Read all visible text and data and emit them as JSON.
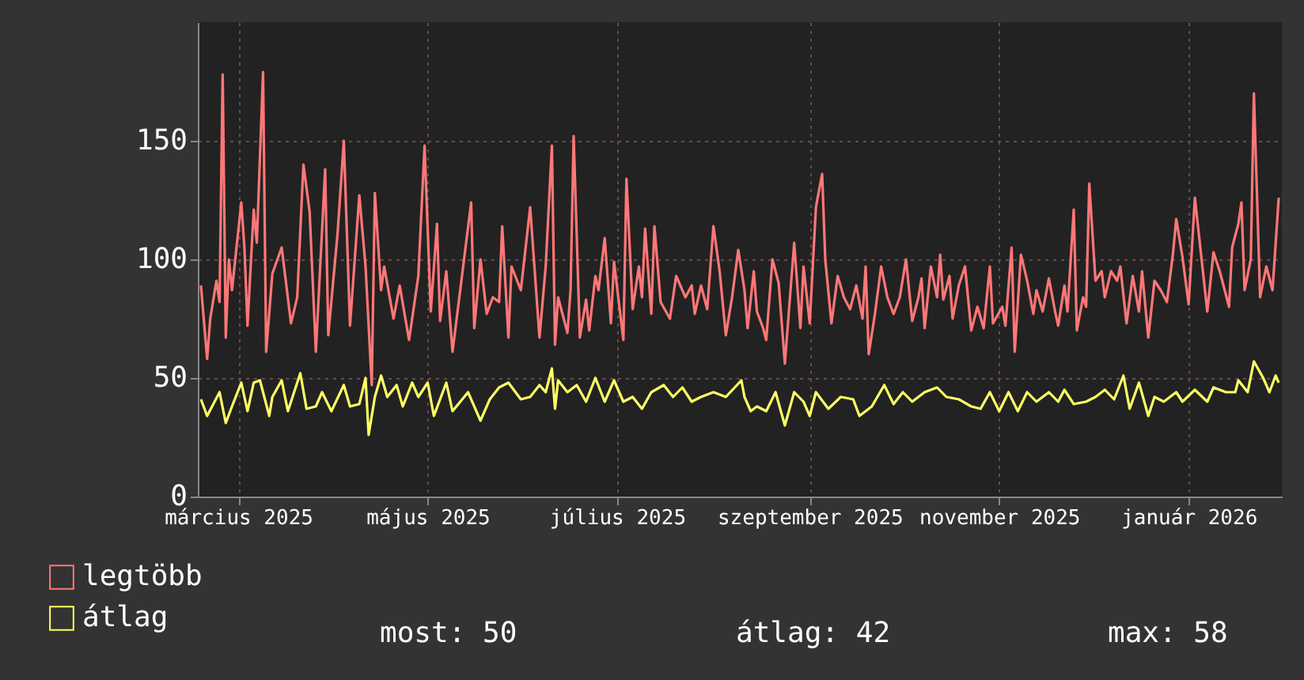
{
  "chart_data": {
    "type": "line",
    "xlim": [
      "2025-02-16",
      "2026-01-31"
    ],
    "xticks": [
      {
        "value": "2025-03-01",
        "label": "március 2025"
      },
      {
        "value": "2025-05-01",
        "label": "május 2025"
      },
      {
        "value": "2025-07-01",
        "label": "július 2025"
      },
      {
        "value": "2025-09-01",
        "label": "szeptember 2025"
      },
      {
        "value": "2025-11-01",
        "label": "november 2025"
      },
      {
        "value": "2026-01-01",
        "label": "január 2026"
      }
    ],
    "ylim": [
      0,
      200
    ],
    "yticks": [
      0,
      50,
      100,
      150
    ],
    "grid": true,
    "legend": "bottom",
    "series": [
      {
        "name": "legtöbb",
        "color": "#ff7777",
        "x": [
          "2025-02-17",
          "2025-02-19",
          "2025-02-20",
          "2025-02-22",
          "2025-02-23",
          "2025-02-24",
          "2025-02-25",
          "2025-02-26",
          "2025-02-27",
          "2025-03-02",
          "2025-03-03",
          "2025-03-04",
          "2025-03-06",
          "2025-03-07",
          "2025-03-09",
          "2025-03-10",
          "2025-03-12",
          "2025-03-15",
          "2025-03-18",
          "2025-03-20",
          "2025-03-22",
          "2025-03-24",
          "2025-03-26",
          "2025-03-29",
          "2025-03-30",
          "2025-04-02",
          "2025-04-04",
          "2025-04-06",
          "2025-04-09",
          "2025-04-11",
          "2025-04-13",
          "2025-04-14",
          "2025-04-16",
          "2025-04-17",
          "2025-04-20",
          "2025-04-22",
          "2025-04-25",
          "2025-04-28",
          "2025-04-30",
          "2025-05-02",
          "2025-05-04",
          "2025-05-05",
          "2025-05-07",
          "2025-05-09",
          "2025-05-11",
          "2025-05-15",
          "2025-05-16",
          "2025-05-18",
          "2025-05-20",
          "2025-05-22",
          "2025-05-24",
          "2025-05-25",
          "2025-05-27",
          "2025-05-28",
          "2025-05-31",
          "2025-06-03",
          "2025-06-06",
          "2025-06-08",
          "2025-06-10",
          "2025-06-11",
          "2025-06-12",
          "2025-06-15",
          "2025-06-16",
          "2025-06-17",
          "2025-06-19",
          "2025-06-21",
          "2025-06-22",
          "2025-06-24",
          "2025-06-25",
          "2025-06-27",
          "2025-06-29",
          "2025-06-30",
          "2025-07-03",
          "2025-07-04",
          "2025-07-06",
          "2025-07-08",
          "2025-07-09",
          "2025-07-10",
          "2025-07-12",
          "2025-07-13",
          "2025-07-15",
          "2025-07-18",
          "2025-07-20",
          "2025-07-23",
          "2025-07-25",
          "2025-07-26",
          "2025-07-28",
          "2025-07-30",
          "2025-08-01",
          "2025-08-03",
          "2025-08-05",
          "2025-08-07",
          "2025-08-09",
          "2025-08-11",
          "2025-08-12",
          "2025-08-14",
          "2025-08-15",
          "2025-08-17",
          "2025-08-18",
          "2025-08-20",
          "2025-08-22",
          "2025-08-24",
          "2025-08-25",
          "2025-08-27",
          "2025-08-29",
          "2025-08-30",
          "2025-09-01",
          "2025-09-03",
          "2025-09-05",
          "2025-09-06",
          "2025-09-08",
          "2025-09-10",
          "2025-09-12",
          "2025-09-14",
          "2025-09-16",
          "2025-09-18",
          "2025-09-19",
          "2025-09-20",
          "2025-09-22",
          "2025-09-24",
          "2025-09-26",
          "2025-09-28",
          "2025-09-30",
          "2025-10-02",
          "2025-10-04",
          "2025-10-06",
          "2025-10-07",
          "2025-10-08",
          "2025-10-10",
          "2025-10-12",
          "2025-10-13",
          "2025-10-14",
          "2025-10-16",
          "2025-10-17",
          "2025-10-19",
          "2025-10-21",
          "2025-10-23",
          "2025-10-25",
          "2025-10-27",
          "2025-10-29",
          "2025-10-30",
          "2025-11-02",
          "2025-11-03",
          "2025-11-05",
          "2025-11-06",
          "2025-11-08",
          "2025-11-10",
          "2025-11-12",
          "2025-11-13",
          "2025-11-15",
          "2025-11-17",
          "2025-11-19",
          "2025-11-20",
          "2025-11-22",
          "2025-11-23",
          "2025-11-25",
          "2025-11-26",
          "2025-11-28",
          "2025-11-29",
          "2025-11-30",
          "2025-12-02",
          "2025-12-04",
          "2025-12-05",
          "2025-12-07",
          "2025-12-09",
          "2025-12-10",
          "2025-12-12",
          "2025-12-14",
          "2025-12-16",
          "2025-12-17",
          "2025-12-19",
          "2025-12-21",
          "2025-12-23",
          "2025-12-25",
          "2025-12-27",
          "2025-12-28",
          "2025-12-30",
          "2026-01-01",
          "2026-01-03",
          "2026-01-05",
          "2026-01-07",
          "2026-01-09",
          "2026-01-11",
          "2026-01-14",
          "2026-01-15",
          "2026-01-17",
          "2026-01-18",
          "2026-01-19",
          "2026-01-21",
          "2026-01-22",
          "2026-01-24",
          "2026-01-26",
          "2026-01-28",
          "2026-01-30"
        ],
        "values": [
          89,
          58,
          75,
          91,
          82,
          178,
          67,
          100,
          87,
          124,
          105,
          72,
          121,
          107,
          179,
          61,
          94,
          105,
          73,
          84,
          140,
          120,
          61,
          138,
          68,
          111,
          150,
          72,
          127,
          97,
          47,
          128,
          87,
          97,
          75,
          89,
          66,
          93,
          148,
          78,
          115,
          74,
          95,
          61,
          82,
          124,
          71,
          100,
          77,
          84,
          82,
          114,
          67,
          97,
          87,
          122,
          67,
          97,
          148,
          64,
          84,
          69,
          87,
          152,
          67,
          83,
          70,
          93,
          87,
          109,
          73,
          99,
          66,
          134,
          79,
          97,
          84,
          113,
          77,
          114,
          82,
          75,
          93,
          84,
          89,
          77,
          89,
          79,
          114,
          95,
          68,
          84,
          104,
          87,
          71,
          95,
          78,
          71,
          66,
          100,
          90,
          56,
          73,
          107,
          71,
          97,
          73,
          122,
          136,
          100,
          73,
          93,
          84,
          79,
          89,
          75,
          97,
          60,
          77,
          97,
          84,
          77,
          84,
          100,
          74,
          84,
          92,
          71,
          97,
          84,
          102,
          83,
          93,
          75,
          89,
          97,
          70,
          80,
          71,
          97,
          73,
          80,
          72,
          105,
          61,
          102,
          91,
          77,
          87,
          78,
          92,
          78,
          72,
          89,
          78,
          121,
          70,
          84,
          80,
          132,
          91,
          95,
          84,
          95,
          91,
          97,
          73,
          93,
          78,
          95,
          67,
          91,
          87,
          82,
          103,
          117,
          101,
          81,
          126,
          102,
          78,
          103,
          95,
          80,
          105,
          115,
          124,
          87,
          100,
          170,
          84,
          97,
          87,
          126
        ]
      },
      {
        "name": "átlag",
        "color": "#ffff66",
        "x": [
          "2025-02-17",
          "2025-02-19",
          "2025-02-23",
          "2025-02-25",
          "2025-02-27",
          "2025-03-02",
          "2025-03-04",
          "2025-03-06",
          "2025-03-08",
          "2025-03-11",
          "2025-03-12",
          "2025-03-15",
          "2025-03-17",
          "2025-03-21",
          "2025-03-23",
          "2025-03-26",
          "2025-03-28",
          "2025-03-31",
          "2025-04-04",
          "2025-04-06",
          "2025-04-09",
          "2025-04-11",
          "2025-04-12",
          "2025-04-14",
          "2025-04-16",
          "2025-04-18",
          "2025-04-21",
          "2025-04-23",
          "2025-04-26",
          "2025-04-28",
          "2025-05-01",
          "2025-05-03",
          "2025-05-07",
          "2025-05-09",
          "2025-05-14",
          "2025-05-18",
          "2025-05-21",
          "2025-05-24",
          "2025-05-27",
          "2025-05-31",
          "2025-06-03",
          "2025-06-06",
          "2025-06-08",
          "2025-06-10",
          "2025-06-11",
          "2025-06-12",
          "2025-06-15",
          "2025-06-18",
          "2025-06-21",
          "2025-06-24",
          "2025-06-27",
          "2025-06-30",
          "2025-07-03",
          "2025-07-06",
          "2025-07-09",
          "2025-07-12",
          "2025-07-16",
          "2025-07-19",
          "2025-07-22",
          "2025-07-25",
          "2025-07-28",
          "2025-08-01",
          "2025-08-05",
          "2025-08-10",
          "2025-08-11",
          "2025-08-13",
          "2025-08-15",
          "2025-08-18",
          "2025-08-21",
          "2025-08-24",
          "2025-08-27",
          "2025-08-30",
          "2025-09-01",
          "2025-09-03",
          "2025-09-07",
          "2025-09-11",
          "2025-09-15",
          "2025-09-17",
          "2025-09-21",
          "2025-09-25",
          "2025-09-28",
          "2025-10-01",
          "2025-10-04",
          "2025-10-08",
          "2025-10-12",
          "2025-10-15",
          "2025-10-19",
          "2025-10-23",
          "2025-10-26",
          "2025-10-29",
          "2025-11-01",
          "2025-11-04",
          "2025-11-07",
          "2025-11-10",
          "2025-11-13",
          "2025-11-17",
          "2025-11-20",
          "2025-11-22",
          "2025-11-25",
          "2025-11-29",
          "2025-12-02",
          "2025-12-05",
          "2025-12-08",
          "2025-12-11",
          "2025-12-13",
          "2025-12-16",
          "2025-12-19",
          "2025-12-21",
          "2025-12-24",
          "2025-12-28",
          "2025-12-30",
          "2026-01-03",
          "2026-01-07",
          "2026-01-09",
          "2026-01-13",
          "2026-01-16",
          "2026-01-17",
          "2026-01-20",
          "2026-01-22",
          "2026-01-25",
          "2026-01-27",
          "2026-01-29",
          "2026-01-30"
        ],
        "values": [
          41,
          34,
          44,
          31,
          38,
          48,
          36,
          48,
          49,
          34,
          42,
          49,
          36,
          52,
          37,
          38,
          44,
          36,
          47,
          38,
          39,
          50,
          26,
          42,
          51,
          42,
          47,
          38,
          48,
          42,
          48,
          34,
          48,
          36,
          44,
          32,
          41,
          46,
          48,
          41,
          42,
          47,
          44,
          54,
          37,
          49,
          44,
          47,
          40,
          50,
          40,
          49,
          40,
          42,
          37,
          44,
          47,
          42,
          46,
          40,
          42,
          44,
          42,
          49,
          42,
          36,
          38,
          36,
          44,
          30,
          44,
          40,
          34,
          44,
          37,
          42,
          41,
          34,
          38,
          47,
          39,
          44,
          40,
          44,
          46,
          42,
          41,
          38,
          37,
          44,
          36,
          44,
          36,
          44,
          40,
          44,
          40,
          45,
          39,
          40,
          42,
          45,
          41,
          51,
          37,
          48,
          34,
          42,
          40,
          44,
          40,
          45,
          40,
          46,
          44,
          44,
          49,
          44,
          57,
          50,
          44,
          51,
          48
        ]
      }
    ],
    "annotations": [
      "most: 50",
      "átlag: 42",
      "max: 58"
    ]
  }
}
